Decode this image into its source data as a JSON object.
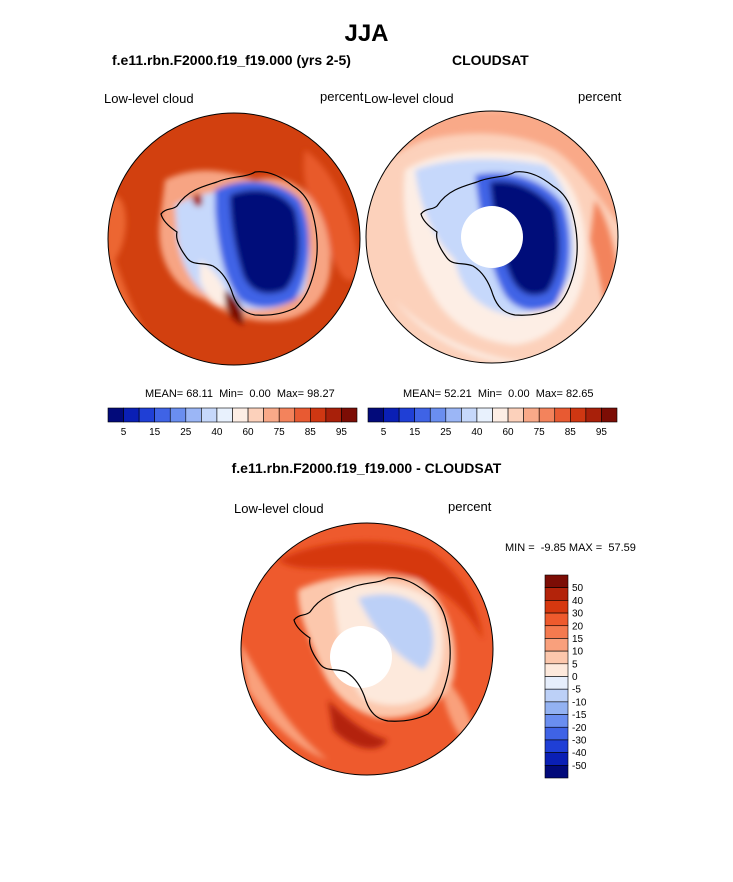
{
  "header": {
    "title": "JJA"
  },
  "chart_data": [
    {
      "type": "heatmap",
      "title": "f.e11.rbn.F2000.f19_f19.000 (yrs 2-5)",
      "variable": "Low-level cloud",
      "units": "percent",
      "projection": "south polar stereographic",
      "stats": {
        "mean": "68.11",
        "min": "0.00",
        "max": "98.27"
      },
      "colorbar": {
        "levels": [
          5,
          10,
          15,
          20,
          25,
          30,
          40,
          50,
          60,
          70,
          75,
          80,
          85,
          90,
          95
        ],
        "tick_labels": [
          "5",
          "15",
          "25",
          "40",
          "60",
          "75",
          "85",
          "95"
        ],
        "colors": [
          "#020a7a",
          "#0a1fb5",
          "#1f3fd6",
          "#3f63e6",
          "#6a8ef0",
          "#9bb6f6",
          "#c6d8fb",
          "#e8f1fd",
          "#fdeee5",
          "#fcd1bb",
          "#f9a988",
          "#f3835c",
          "#e85a32",
          "#cf3712",
          "#a8200a",
          "#7c0d05"
        ]
      }
    },
    {
      "type": "heatmap",
      "title": "CLOUDSAT",
      "variable": "Low-level cloud",
      "units": "percent",
      "projection": "south polar stereographic",
      "stats": {
        "mean": "52.21",
        "min": "0.00",
        "max": "82.65"
      },
      "colorbar": {
        "levels": [
          5,
          10,
          15,
          20,
          25,
          30,
          40,
          50,
          60,
          70,
          75,
          80,
          85,
          90,
          95
        ],
        "tick_labels": [
          "5",
          "15",
          "25",
          "40",
          "60",
          "75",
          "85",
          "95"
        ],
        "colors": [
          "#020a7a",
          "#0a1fb5",
          "#1f3fd6",
          "#3f63e6",
          "#6a8ef0",
          "#9bb6f6",
          "#c6d8fb",
          "#e8f1fd",
          "#fdeee5",
          "#fcd1bb",
          "#f9a988",
          "#f3835c",
          "#e85a32",
          "#cf3712",
          "#a8200a",
          "#7c0d05"
        ]
      }
    },
    {
      "type": "heatmap",
      "title": "f.e11.rbn.F2000.f19_f19.000 - CLOUDSAT",
      "variable": "Low-level cloud",
      "units": "percent",
      "projection": "south polar stereographic",
      "stats": {
        "min": "-9.85",
        "max": "57.59"
      },
      "colorbar": {
        "tick_labels": [
          "50",
          "40",
          "30",
          "20",
          "15",
          "10",
          "5",
          "0",
          "-5",
          "-10",
          "-15",
          "-20",
          "-30",
          "-40",
          "-50"
        ],
        "colors": [
          "#7c0d05",
          "#b3230a",
          "#d6380f",
          "#ee5a2d",
          "#f47a4f",
          "#f9a07c",
          "#fcc7ac",
          "#fde9dc",
          "#e6eefc",
          "#bcd0f7",
          "#93b2f2",
          "#6a8ef0",
          "#3f63e6",
          "#1f3fd6",
          "#0a1fb5",
          "#020a7a"
        ]
      }
    }
  ]
}
